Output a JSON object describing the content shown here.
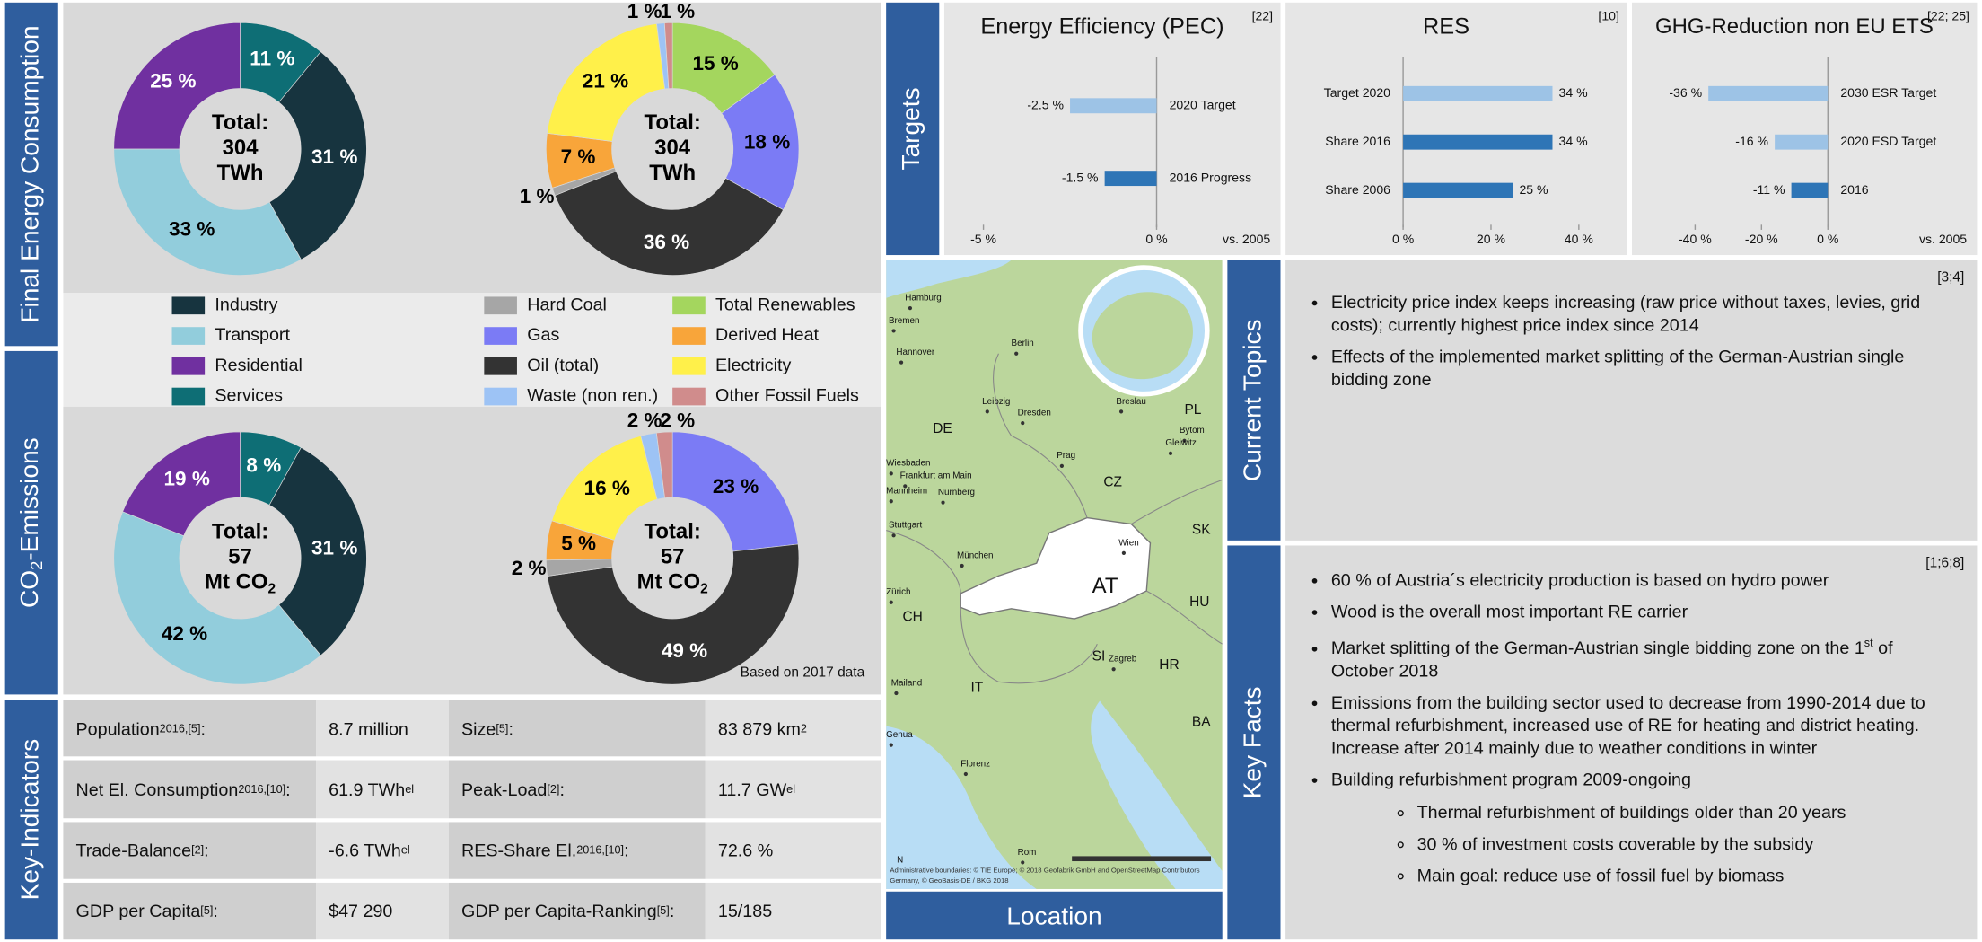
{
  "sections": {
    "final_energy": "Final Energy Consumption",
    "co2": {
      "text": "CO",
      "sub": "2",
      "after": "-Emissions"
    },
    "key_indicators": "Key-Indicators",
    "targets": "Targets",
    "current_topics": "Current Topics",
    "key_facts": "Key Facts",
    "location": "Location"
  },
  "energy_pies": [
    {
      "type": "pie",
      "center": {
        "lines": [
          "Total:",
          "304",
          "TWh"
        ]
      },
      "categories": [
        "Services",
        "Industry",
        "Transport",
        "Residential"
      ],
      "values": [
        11,
        31,
        33,
        25
      ],
      "value_labels": [
        "11 %",
        "31 %",
        "33 %",
        "25 %"
      ],
      "colors": [
        "#0E6E75",
        "#17343F",
        "#92CDDC",
        "#7030A0"
      ]
    },
    {
      "type": "pie",
      "center": {
        "lines": [
          "Total:",
          "304",
          "TWh"
        ]
      },
      "categories": [
        "Total Renewables",
        "Gas",
        "Oil (total)",
        "Hard Coal",
        "Derived Heat",
        "Electricity",
        "Waste (non ren.)",
        "Other Fossil Fuels"
      ],
      "values": [
        15,
        18,
        36,
        1,
        7,
        21,
        1,
        1
      ],
      "value_labels": [
        "15 %",
        "18 %",
        "36 %",
        "1 %",
        "7 %",
        "21 %",
        "1 %",
        "1 %"
      ],
      "colors": [
        "#A4D65E",
        "#7B7BF5",
        "#333333",
        "#A6A6A6",
        "#F8A53A",
        "#FFF04A",
        "#9DC3F5",
        "#D08C8C"
      ]
    },
    {
      "type": "pie",
      "center": {
        "lines": [
          "Total:",
          "57",
          "Mt CO"
        ],
        "last_sub": "2"
      },
      "categories": [
        "Services",
        "Industry",
        "Transport",
        "Residential"
      ],
      "values": [
        8,
        31,
        42,
        19
      ],
      "value_labels": [
        "8 %",
        "31 %",
        "42 %",
        "19 %"
      ],
      "colors": [
        "#0E6E75",
        "#17343F",
        "#92CDDC",
        "#7030A0"
      ]
    },
    {
      "type": "pie",
      "center": {
        "lines": [
          "Total:",
          "57",
          "Mt CO"
        ],
        "last_sub": "2"
      },
      "categories": [
        "Gas",
        "Oil (total)",
        "Hard Coal",
        "Derived Heat",
        "Electricity",
        "Waste (non ren.)",
        "Other Fossil Fuels"
      ],
      "values": [
        23,
        49,
        2,
        5,
        16,
        2,
        2
      ],
      "value_labels": [
        "23 %",
        "49 %",
        "2 %",
        "5 %",
        "16 %",
        "2 %",
        "2 %"
      ],
      "colors": [
        "#7B7BF5",
        "#333333",
        "#A6A6A6",
        "#F8A53A",
        "#FFF04A",
        "#9DC3F5",
        "#D08C8C"
      ]
    }
  ],
  "legend": [
    {
      "name": "Industry",
      "color": "#17343F"
    },
    {
      "name": "Transport",
      "color": "#92CDDC"
    },
    {
      "name": "Residential",
      "color": "#7030A0"
    },
    {
      "name": "Services",
      "color": "#0E6E75"
    },
    {
      "name": "Hard Coal",
      "color": "#A6A6A6"
    },
    {
      "name": "Gas",
      "color": "#7B7BF5"
    },
    {
      "name": "Oil (total)",
      "color": "#333333"
    },
    {
      "name": "Waste (non ren.)",
      "color": "#9DC3F5"
    },
    {
      "name": "Total Renewables",
      "color": "#A4D65E"
    },
    {
      "name": "Derived Heat",
      "color": "#F8A53A"
    },
    {
      "name": "Electricity",
      "color": "#FFF04A"
    },
    {
      "name": "Other Fossil Fuels",
      "color": "#D08C8C"
    }
  ],
  "note": "Based on 2017 data",
  "targets": [
    {
      "type": "bar",
      "orientation": "horizontal",
      "title": "Energy Efficiency (PEC)",
      "ref": "[22]",
      "note": "vs. 2005",
      "categories": [
        "2020 Target",
        "2016 Progress"
      ],
      "values": [
        -2.5,
        -1.5
      ],
      "value_labels": [
        "-2.5 %",
        "-1.5 %"
      ],
      "colors": [
        "#9DC3E6",
        "#2E75B6"
      ],
      "xlim": [
        -5,
        0
      ],
      "xticks": [
        {
          "value": -5,
          "label": "-5 %"
        },
        {
          "value": 0,
          "label": "0 %"
        }
      ]
    },
    {
      "type": "bar",
      "orientation": "horizontal",
      "title": "RES",
      "ref": "[10]",
      "categories": [
        "Target 2020",
        "Share 2016",
        "Share 2006"
      ],
      "values": [
        34,
        34,
        25
      ],
      "value_labels": [
        "34 %",
        "34 %",
        "25 %"
      ],
      "colors": [
        "#9DC3E6",
        "#2E75B6",
        "#2E75B6"
      ],
      "xlim": [
        0,
        40
      ],
      "xticks": [
        {
          "value": 0,
          "label": "0 %"
        },
        {
          "value": 20,
          "label": "20 %"
        },
        {
          "value": 40,
          "label": "40 %"
        }
      ]
    },
    {
      "type": "bar",
      "orientation": "horizontal",
      "title": "GHG-Reduction non EU ETS",
      "ref": "[22; 25]",
      "note": "vs. 2005",
      "categories": [
        "2030 ESR Target",
        "2020 ESD Target",
        "2016"
      ],
      "values": [
        -36,
        -16,
        -11
      ],
      "value_labels": [
        "-36 %",
        "-16 %",
        "-11 %"
      ],
      "colors": [
        "#9DC3E6",
        "#9DC3E6",
        "#2E75B6"
      ],
      "xlim": [
        -40,
        0
      ],
      "xticks": [
        {
          "value": -40,
          "label": "-40 %"
        },
        {
          "value": -20,
          "label": "-20 %"
        },
        {
          "value": 0,
          "label": "0 %"
        }
      ]
    }
  ],
  "key_indicators": {
    "rows": [
      [
        {
          "text": "Population",
          "sup": "2016,[5]",
          "after": ":"
        },
        {
          "text": "8.7 million"
        },
        {
          "text": "Size",
          "sup": "[5]",
          "after": ":"
        },
        {
          "text": "83 879 km",
          "sup": "2"
        }
      ],
      [
        {
          "text": "Net El. Consumption",
          "sup": "2016,[10]",
          "after": ":"
        },
        {
          "text": "61.9 TWh",
          "sub": "el"
        },
        {
          "text": "Peak-Load",
          "sup": "[2]",
          "after": ":"
        },
        {
          "text": "11.7 GW",
          "sub": "el"
        }
      ],
      [
        {
          "text": "Trade-Balance",
          "sup": "[2]",
          "after": ":"
        },
        {
          "text": "-6.6 TWh",
          "sub": "el"
        },
        {
          "text": "RES-Share El.",
          "sup": "2016,[10]",
          "after": ":"
        },
        {
          "text": "72.6 %"
        }
      ],
      [
        {
          "text": "GDP per Capita",
          "sup": "[5]",
          "after": ":"
        },
        {
          "text": "$47 290"
        },
        {
          "text": "GDP per Capita-Ranking",
          "sup": "[5]",
          "after": ":"
        },
        {
          "text": "15/185"
        }
      ]
    ]
  },
  "current_topics": {
    "ref": "[3;4]",
    "bullets": [
      {
        "text": "Electricity price index keeps increasing (raw price without taxes, levies, grid costs); currently highest price index since 2014"
      },
      {
        "text": "Effects of the implemented market splitting of the German-Austrian single bidding zone"
      }
    ]
  },
  "key_facts": {
    "ref": "[1;6;8]",
    "bullets": [
      {
        "text": "60 % of Austria´s electricity production is based on hydro power"
      },
      {
        "text": "Wood is the overall most important RE carrier"
      },
      {
        "text": "Market splitting of the German-Austrian single bidding zone on the 1",
        "sup": "st",
        "after": " of October 2018"
      },
      {
        "text": "Emissions from the building sector used to decrease from 1990-2014 due to thermal refurbishment, increased use of RE for heating and district heating. Increase after 2014 mainly due to weather conditions in winter"
      },
      {
        "text": "Building refurbishment program 2009-ongoing",
        "items": [
          "Thermal refurbishment of buildings older than 20 years",
          "30 % of investment costs coverable by the subsidy",
          "Main goal: reduce use of fossil fuel by biomass"
        ]
      }
    ]
  },
  "map": {
    "labels": [
      "Hamburg",
      "Bremen",
      "Hannover",
      "Berlin",
      "DE",
      "Leipzig",
      "Dresden",
      "Breslau",
      "PL",
      "Bytom",
      "Gleiwitz",
      "Wiesbaden",
      "Frankfurt am Main",
      "Mannheim",
      "Nürnberg",
      "Prag",
      "CZ",
      "Stuttgart",
      "München",
      "Wien",
      "SK",
      "AT",
      "Zürich",
      "CH",
      "HU",
      "SI",
      "Zagreb",
      "HR",
      "IT",
      "Mailand",
      "BA",
      "Genua",
      "Florenz",
      "Rom"
    ],
    "attribution": [
      "Administrative boundaries: © TIE Europe; © 2018 Geofabrik GmbH and OpenStreetMap Contributors",
      "Germany, © GeoBasis-DE / BKG 2018"
    ],
    "north": "N"
  }
}
